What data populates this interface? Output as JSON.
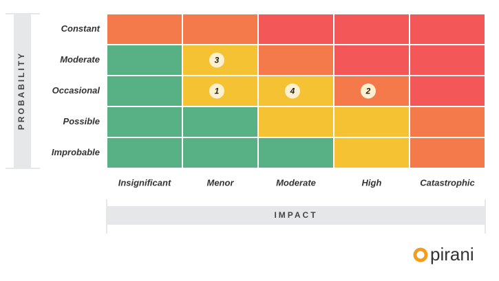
{
  "axes": {
    "y_title": "PROBABILITY",
    "x_title": "IMPACT"
  },
  "columns": [
    "Insignificant",
    "Menor",
    "Moderate",
    "High",
    "Catastrophic"
  ],
  "rows": [
    {
      "label": "Constant",
      "cells": [
        {
          "color": "#f47a4c"
        },
        {
          "color": "#f47a4c"
        },
        {
          "color": "#f35757"
        },
        {
          "color": "#f35757"
        },
        {
          "color": "#f35757"
        }
      ]
    },
    {
      "label": "Moderate",
      "cells": [
        {
          "color": "#58b085"
        },
        {
          "color": "#f4c232",
          "marker": "3"
        },
        {
          "color": "#f47a4c"
        },
        {
          "color": "#f35757"
        },
        {
          "color": "#f35757"
        }
      ]
    },
    {
      "label": "Occasional",
      "cells": [
        {
          "color": "#58b085"
        },
        {
          "color": "#f4c232",
          "marker": "1"
        },
        {
          "color": "#f4c232",
          "marker": "4"
        },
        {
          "color": "#f47a4c",
          "marker": "2"
        },
        {
          "color": "#f35757"
        }
      ]
    },
    {
      "label": "Possible",
      "cells": [
        {
          "color": "#58b085"
        },
        {
          "color": "#58b085"
        },
        {
          "color": "#f4c232"
        },
        {
          "color": "#f4c232"
        },
        {
          "color": "#f47a4c"
        }
      ]
    },
    {
      "label": "Improbable",
      "cells": [
        {
          "color": "#58b085"
        },
        {
          "color": "#58b085"
        },
        {
          "color": "#58b085"
        },
        {
          "color": "#f4c232"
        },
        {
          "color": "#f47a4c"
        }
      ]
    }
  ],
  "logo": "pirani"
}
